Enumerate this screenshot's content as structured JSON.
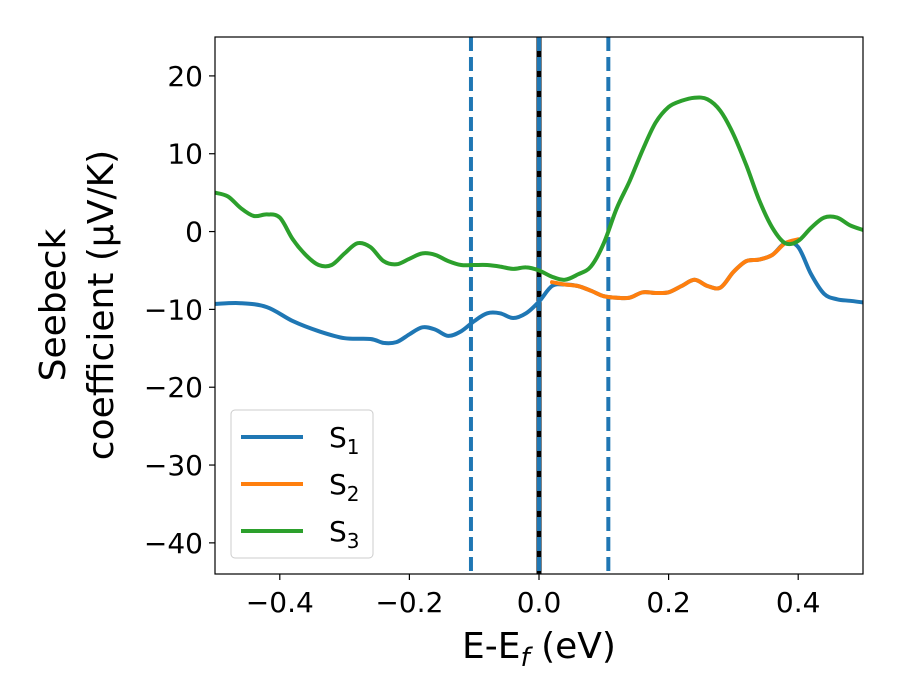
{
  "chart_data": {
    "type": "line",
    "xlabel_main": "E-E",
    "xlabel_sub": "f",
    "xlabel_unit": " (eV)",
    "ylabel_line1": "Seebeck",
    "ylabel_line2": "coefficient  (μV/K)",
    "xlim": [
      -0.5,
      0.5
    ],
    "ylim": [
      -44,
      25
    ],
    "xticks": [
      -0.4,
      -0.2,
      0.0,
      0.2,
      0.4
    ],
    "xtick_labels": [
      "−0.4",
      "−0.2",
      "0.0",
      "0.2",
      "0.4"
    ],
    "yticks": [
      20,
      10,
      0,
      -10,
      -20,
      -30,
      -40
    ],
    "ytick_labels": [
      "20",
      "10",
      "0",
      "−10",
      "−20",
      "−30",
      "−40"
    ],
    "grid": false,
    "legend_position": "lower-left",
    "vlines": [
      {
        "x": -0.105,
        "style": "dashed",
        "color": "#1f77b4"
      },
      {
        "x": 0.0,
        "style": "solid",
        "color": "#000000"
      },
      {
        "x": 0.0,
        "style": "dashed",
        "color": "#1f77b4"
      },
      {
        "x": 0.107,
        "style": "dashed",
        "color": "#1f77b4"
      }
    ],
    "series": [
      {
        "name": "S",
        "sub": "1",
        "color": "#1f77b4",
        "x": [
          -0.5,
          -0.46,
          -0.42,
          -0.38,
          -0.34,
          -0.3,
          -0.26,
          -0.24,
          -0.22,
          -0.2,
          -0.18,
          -0.16,
          -0.14,
          -0.12,
          -0.1,
          -0.08,
          -0.06,
          -0.04,
          -0.02,
          0.0,
          0.02,
          0.04,
          0.06,
          0.08,
          0.1,
          0.12,
          0.14,
          0.16,
          0.18,
          0.2,
          0.22,
          0.24,
          0.26,
          0.28,
          0.3,
          0.32,
          0.34,
          0.36,
          0.38,
          0.4,
          0.42,
          0.44,
          0.46,
          0.48,
          0.5
        ],
        "y": [
          -9.3,
          -9.2,
          -9.7,
          -11.5,
          -12.8,
          -13.7,
          -13.8,
          -14.3,
          -14.2,
          -13.2,
          -12.3,
          -12.6,
          -13.4,
          -12.8,
          -11.5,
          -10.5,
          -10.5,
          -11.1,
          -10.5,
          -9.0,
          -7.0,
          -6.8,
          -7.0,
          -7.6,
          -8.3,
          -8.5,
          -8.5,
          -7.8,
          -7.9,
          -7.8,
          -7.0,
          -6.2,
          -7.0,
          -7.2,
          -5.2,
          -3.8,
          -3.6,
          -3.0,
          -1.5,
          -2.0,
          -5.5,
          -8.0,
          -8.7,
          -8.9,
          -9.1
        ]
      },
      {
        "name": "S",
        "sub": "2",
        "color": "#ff7f0e",
        "x": [
          0.02,
          0.04,
          0.06,
          0.08,
          0.1,
          0.12,
          0.14,
          0.16,
          0.18,
          0.2,
          0.22,
          0.24,
          0.26,
          0.28,
          0.3,
          0.32,
          0.34,
          0.36,
          0.38,
          0.4
        ],
        "y": [
          -6.5,
          -6.8,
          -7.0,
          -7.6,
          -8.3,
          -8.5,
          -8.5,
          -7.8,
          -7.9,
          -7.8,
          -7.0,
          -6.2,
          -7.0,
          -7.2,
          -5.2,
          -3.8,
          -3.6,
          -3.0,
          -1.5,
          -1.0
        ]
      },
      {
        "name": "S",
        "sub": "3",
        "color": "#2ca02c",
        "x": [
          -0.5,
          -0.48,
          -0.46,
          -0.44,
          -0.42,
          -0.4,
          -0.38,
          -0.36,
          -0.34,
          -0.32,
          -0.3,
          -0.28,
          -0.26,
          -0.24,
          -0.22,
          -0.2,
          -0.18,
          -0.16,
          -0.14,
          -0.12,
          -0.1,
          -0.08,
          -0.06,
          -0.04,
          -0.02,
          0.0,
          0.02,
          0.04,
          0.06,
          0.08,
          0.1,
          0.12,
          0.14,
          0.16,
          0.18,
          0.2,
          0.22,
          0.24,
          0.26,
          0.28,
          0.3,
          0.32,
          0.34,
          0.36,
          0.38,
          0.4,
          0.42,
          0.44,
          0.46,
          0.48,
          0.5
        ],
        "y": [
          5.0,
          4.5,
          3.0,
          2.0,
          2.2,
          1.8,
          -1.0,
          -3.0,
          -4.3,
          -4.3,
          -2.8,
          -1.5,
          -2.0,
          -3.8,
          -4.2,
          -3.5,
          -2.8,
          -3.0,
          -3.8,
          -4.3,
          -4.3,
          -4.3,
          -4.5,
          -4.8,
          -4.6,
          -5.0,
          -5.8,
          -6.2,
          -5.5,
          -4.5,
          -1.5,
          3.0,
          6.5,
          10.5,
          14.0,
          16.0,
          16.8,
          17.2,
          17.0,
          15.5,
          12.5,
          8.5,
          4.0,
          0.5,
          -1.5,
          -1.2,
          0.5,
          1.8,
          1.8,
          0.8,
          0.2
        ]
      }
    ]
  }
}
